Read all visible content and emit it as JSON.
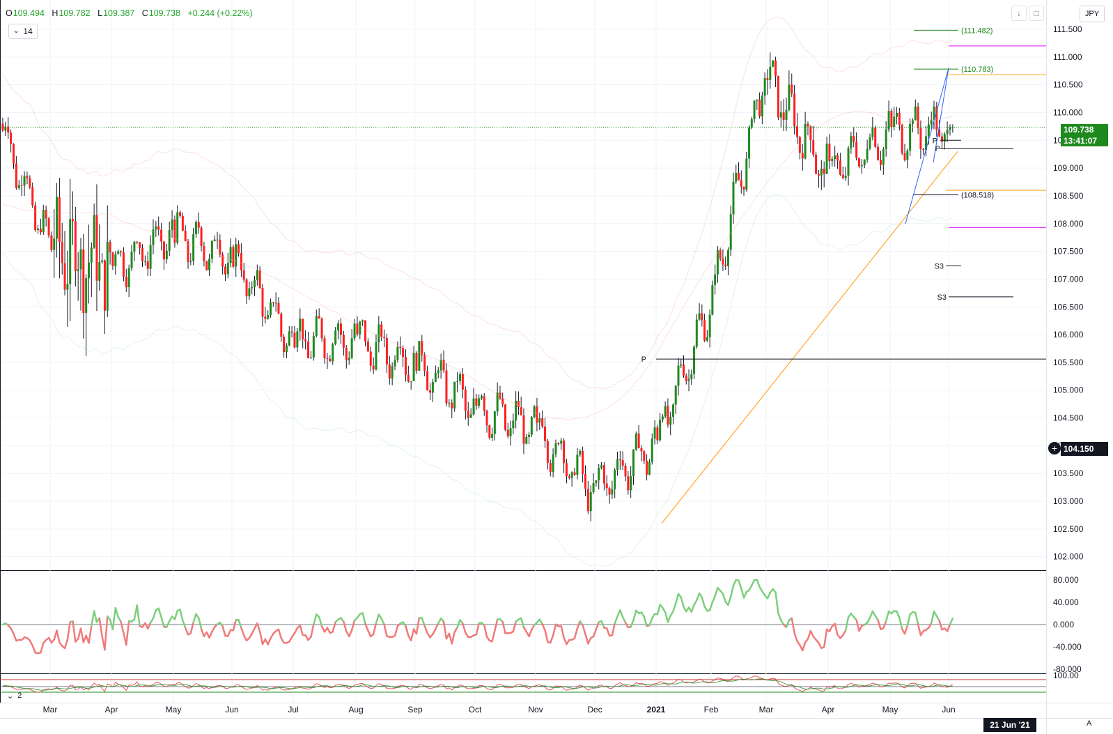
{
  "ohlc": {
    "o_label": "O",
    "o": "109.494",
    "h_label": "H",
    "h": "109.782",
    "l_label": "L",
    "l": "109.387",
    "c_label": "C",
    "c": "109.738",
    "change": "+0.244 (+0.22%)"
  },
  "legend_toggle": {
    "value": "14",
    "icon": "chevron-down-icon"
  },
  "osc2_toggle": {
    "value": "2",
    "icon": "chevron-down-icon"
  },
  "toolbar": {
    "icons": [
      "download-icon",
      "fullscreen-icon"
    ]
  },
  "currency": "JPY",
  "current_price": {
    "price": "109.738",
    "countdown": "13:41:07",
    "color": "#1e8a1e"
  },
  "crosshair_price": "104.150",
  "crosshair_date": "21 Jun '21",
  "auto_label": "A",
  "colors": {
    "up": "#1e8a1e",
    "down": "#ff1f1f",
    "fib_orange": "#ffa726",
    "fib_magenta": "#e040fb",
    "osc_pos": "#7ccf7c",
    "osc_neg": "#f07a7a"
  },
  "chart_data": {
    "type": "candlestick",
    "instrument_currency": "JPY",
    "x_axis": {
      "tick_labels": [
        "Mar",
        "Apr",
        "May",
        "Jun",
        "Jul",
        "Aug",
        "Sep",
        "Oct",
        "Nov",
        "Dec",
        "2021",
        "Feb",
        "Mar",
        "Apr",
        "May",
        "Jun"
      ],
      "range": [
        "2020-02",
        "2021-06"
      ]
    },
    "y_axis": {
      "tick_labels": [
        "111.500",
        "111.000",
        "110.500",
        "110.000",
        "109.500",
        "109.000",
        "108.500",
        "108.000",
        "107.500",
        "107.000",
        "106.500",
        "106.000",
        "105.500",
        "105.000",
        "104.500",
        "104.000",
        "103.500",
        "103.000",
        "102.500",
        "102.000"
      ],
      "range": [
        101.8,
        111.9
      ]
    },
    "price_path_monthly": [
      {
        "x": "2020-02",
        "close": 109.8
      },
      {
        "x": "2020-03",
        "close": 107.6
      },
      {
        "x": "2020-04",
        "close": 107.2
      },
      {
        "x": "2020-05",
        "close": 107.8
      },
      {
        "x": "2020-06",
        "close": 107.4
      },
      {
        "x": "2020-07",
        "close": 105.9
      },
      {
        "x": "2020-08",
        "close": 105.9
      },
      {
        "x": "2020-09",
        "close": 105.5
      },
      {
        "x": "2020-10",
        "close": 104.7
      },
      {
        "x": "2020-11",
        "close": 104.3
      },
      {
        "x": "2020-12",
        "close": 103.2
      },
      {
        "x": "2021-01",
        "close": 104.0
      },
      {
        "x": "2021-02",
        "close": 106.5
      },
      {
        "x": "2021-03",
        "close": 110.7
      },
      {
        "x": "2021-04",
        "close": 108.9
      },
      {
        "x": "2021-05",
        "close": 109.6
      },
      {
        "x": "2021-06",
        "close": 109.738
      }
    ],
    "annotations": [
      {
        "label": "(111.482)",
        "value": 111.482
      },
      {
        "label": "(110.783)",
        "value": 110.783
      },
      {
        "label": "(108.518)",
        "value": 108.518
      },
      {
        "label": "P",
        "value": 105.56
      },
      {
        "label": "P",
        "value": 109.5
      },
      {
        "label": "P",
        "value": 109.35
      },
      {
        "label": "S3",
        "value": 107.24
      },
      {
        "label": "S3",
        "value": 106.68
      }
    ],
    "orange_levels": [
      110.68,
      108.6
    ],
    "magenta_levels": [
      111.2,
      107.93
    ],
    "oscillator_1": {
      "tick_labels": [
        "80.000",
        "40.000",
        "0.000",
        "-40.000",
        "-80.000"
      ],
      "range": [
        -90,
        90
      ]
    },
    "oscillator_2": {
      "tick_labels": [
        "100.00"
      ]
    }
  }
}
